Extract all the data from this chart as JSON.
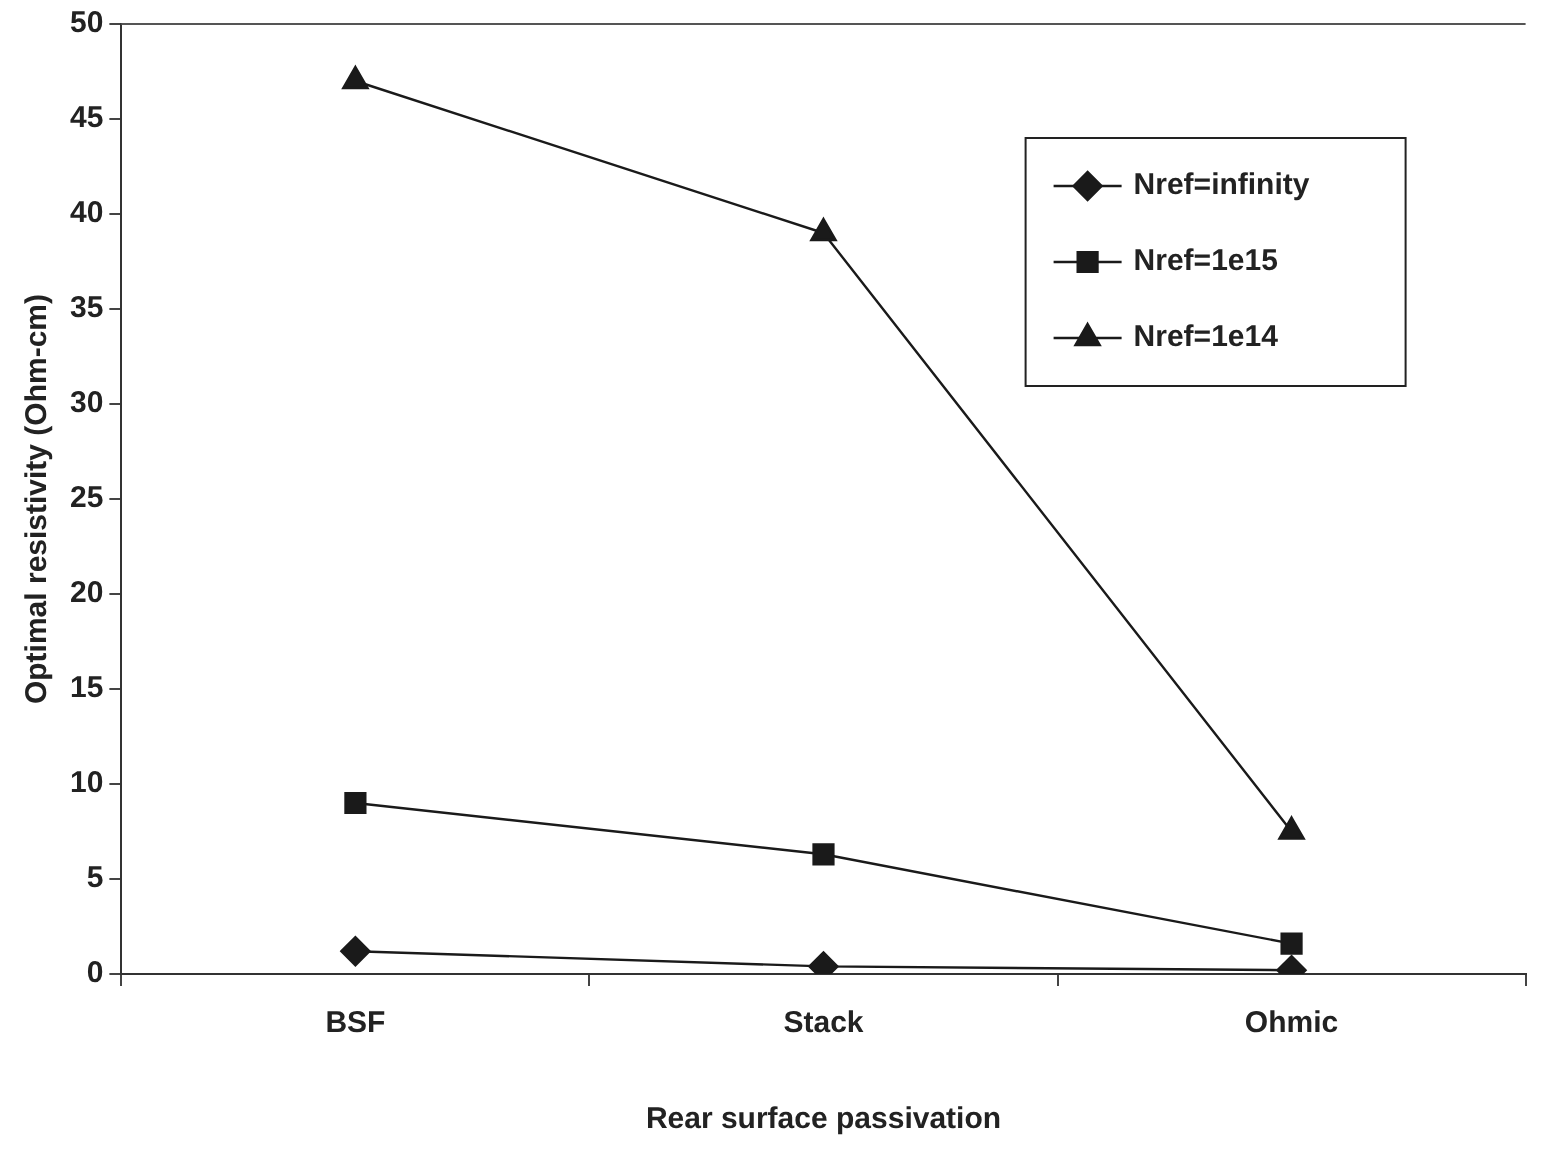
{
  "chart_data": {
    "type": "line",
    "xlabel": "Rear surface passivation",
    "ylabel": "Optimal resistivity (Ohm-cm)",
    "categories": [
      "BSF",
      "Stack",
      "Ohmic"
    ],
    "ylim": [
      0,
      50
    ],
    "yticks": [
      0,
      5,
      10,
      15,
      20,
      25,
      30,
      35,
      40,
      45,
      50
    ],
    "grid": false,
    "legend": "top right",
    "line_style": "solid",
    "series": [
      {
        "name": "Nref=infinity",
        "color": "#1a1a1a",
        "marker": "diamond",
        "values": [
          1.2,
          0.4,
          0.2
        ]
      },
      {
        "name": "Nref=1e15",
        "color": "#1a1a1a",
        "marker": "square",
        "values": [
          9,
          6.3,
          1.6
        ]
      },
      {
        "name": "Nref=1e14",
        "color": "#1a1a1a",
        "marker": "triangle",
        "values": [
          47,
          39,
          7.5
        ]
      }
    ]
  }
}
